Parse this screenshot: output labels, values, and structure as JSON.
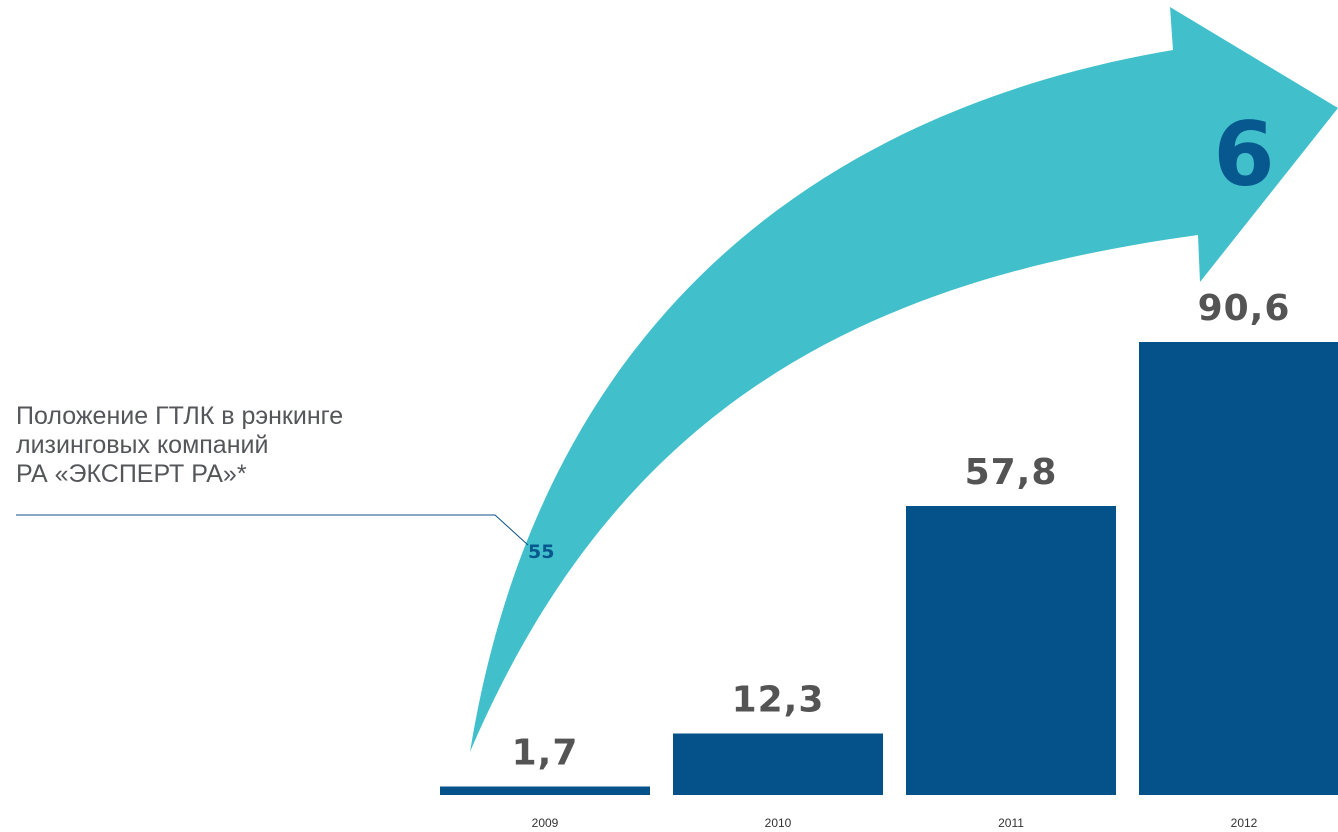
{
  "chart_data": {
    "type": "bar",
    "categories": [
      "2009",
      "2010",
      "2011",
      "2012"
    ],
    "values": [
      1.7,
      12.3,
      57.8,
      90.6
    ],
    "value_labels": [
      "1,7",
      "12,3",
      "57,8",
      "90,6"
    ],
    "ylim": [
      0,
      100
    ],
    "grid": false,
    "legend": "none",
    "annotation": {
      "lines": [
        "Положение ГТЛК в рэнкинге",
        "лизинговых компаний",
        "РА «ЭКСПЕРТ РА»*"
      ]
    },
    "rank": {
      "start": "55",
      "end": "6"
    }
  },
  "colors": {
    "bar": "#05518a",
    "arrow": "#41c0cc",
    "rank_text": "#07588f",
    "label_text": "#545454",
    "annotation_text": "#54565a",
    "leader_line": "#0d5289"
  }
}
